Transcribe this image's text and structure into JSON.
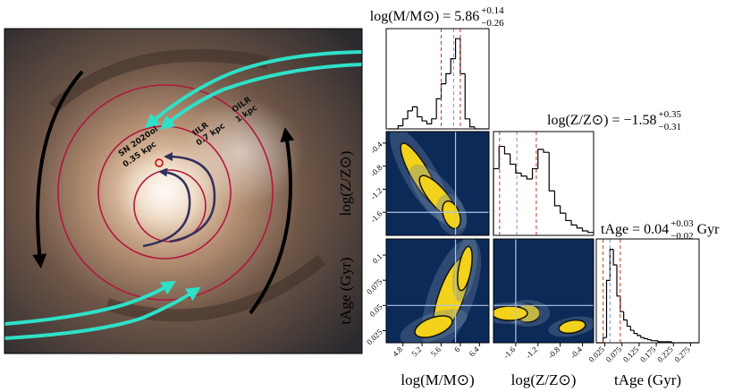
{
  "image": {
    "sn": "SN 2020oi",
    "sn_radius": "0.35 kpc",
    "iilr": "IILR",
    "iilr_radius": "0.7 kpc",
    "oilr": "OILR",
    "oilr_radius": "1 kpc"
  },
  "chart_data": [
    {
      "type": "histogram",
      "title": "log(M/M⊙) = 5.86",
      "title_errors": [
        "+0.14",
        "−0.26"
      ],
      "bins": [
        4.5,
        4.6,
        4.7,
        4.8,
        4.9,
        5.0,
        5.1,
        5.2,
        5.3,
        5.4,
        5.5,
        5.6,
        5.7,
        5.8,
        5.9,
        6.0,
        6.1,
        6.2,
        6.3,
        6.4,
        6.5,
        6.6
      ],
      "values": [
        0,
        0,
        3,
        10,
        18,
        22,
        12,
        8,
        5,
        10,
        30,
        45,
        55,
        70,
        90,
        55,
        10,
        2,
        0,
        0,
        0
      ],
      "xlim": [
        4.45,
        6.6
      ],
      "ylim": [
        0,
        100
      ],
      "quantiles": [
        5.6,
        5.86,
        6.0
      ],
      "quantile_colors": [
        "#c0392b",
        "#7f8fd8",
        "#c0392b"
      ],
      "color": "#000000"
    },
    {
      "type": "density",
      "ylabel": "log(Z/Z⊙)",
      "xlim": [
        4.45,
        6.6
      ],
      "ylim": [
        -2.0,
        -0.2
      ],
      "yticks": [
        -1.6,
        -1.2,
        -0.8,
        -0.4
      ],
      "truths": [
        5.9,
        -1.6
      ]
    },
    {
      "type": "histogram",
      "title": "log(Z/Z⊙) = −1.58",
      "title_errors": [
        "+0.35",
        "−0.31"
      ],
      "bins": [
        -2.0,
        -1.9,
        -1.8,
        -1.7,
        -1.6,
        -1.5,
        -1.4,
        -1.3,
        -1.2,
        -1.1,
        -1.0,
        -0.9,
        -0.8,
        -0.7,
        -0.6,
        -0.5,
        -0.4,
        -0.3,
        -0.2
      ],
      "values": [
        45,
        60,
        55,
        48,
        42,
        40,
        38,
        45,
        58,
        56,
        30,
        20,
        15,
        10,
        7,
        5,
        3,
        2
      ],
      "xlim": [
        -2.0,
        -0.2
      ],
      "ylim": [
        0,
        70
      ],
      "quantiles": [
        -1.89,
        -1.58,
        -1.23
      ],
      "quantile_colors": [
        "#c0392b",
        "#7f8fd8",
        "#c0392b"
      ],
      "color": "#000000"
    },
    {
      "type": "density",
      "ylabel": "tAge (Gyr)",
      "xlabel": "log(M/M⊙)",
      "xlim": [
        4.45,
        6.6
      ],
      "ylim": [
        0.013,
        0.116
      ],
      "xticks": [
        4.8,
        5.2,
        5.6,
        6.0,
        6.4
      ],
      "yticks": [
        0.025,
        0.05,
        0.075,
        0.1
      ],
      "truths": [
        5.9,
        0.05
      ]
    },
    {
      "type": "density",
      "xlabel": "log(Z/Z⊙)",
      "xlim": [
        -2.0,
        -0.2
      ],
      "ylim": [
        0.013,
        0.116
      ],
      "xticks": [
        -1.6,
        -1.2,
        -0.8,
        -0.4
      ],
      "truths": [
        -1.6,
        0.05
      ]
    },
    {
      "type": "histogram",
      "title": "tAge = 0.04",
      "title_errors": [
        "+0.03",
        "−0.02"
      ],
      "title_unit": "Gyr",
      "xlabel": "tAge (Gyr)",
      "bins": [
        0,
        0.01,
        0.02,
        0.03,
        0.04,
        0.05,
        0.06,
        0.07,
        0.08,
        0.09,
        0.1,
        0.11,
        0.12,
        0.13,
        0.14,
        0.15,
        0.16,
        0.17,
        0.18,
        0.19,
        0.2,
        0.21,
        0.22,
        0.23,
        0.24,
        0.25,
        0.26,
        0.27,
        0.28,
        0.29,
        0.3
      ],
      "values": [
        0,
        0,
        5,
        60,
        90,
        75,
        45,
        30,
        22,
        16,
        12,
        9,
        7,
        5,
        4,
        3,
        2,
        2,
        1,
        1,
        1,
        1,
        0,
        0,
        0,
        0,
        0,
        0,
        0,
        0
      ],
      "xlim": [
        0,
        0.3
      ],
      "ylim": [
        0,
        100
      ],
      "xticks": [
        0.025,
        0.075,
        0.125,
        0.175,
        0.225,
        0.275
      ],
      "quantiles": [
        0.02,
        0.04,
        0.07
      ],
      "quantile_colors": [
        "#c0392b",
        "#7f8fd8",
        "#c0392b"
      ],
      "color": "#000000"
    }
  ]
}
